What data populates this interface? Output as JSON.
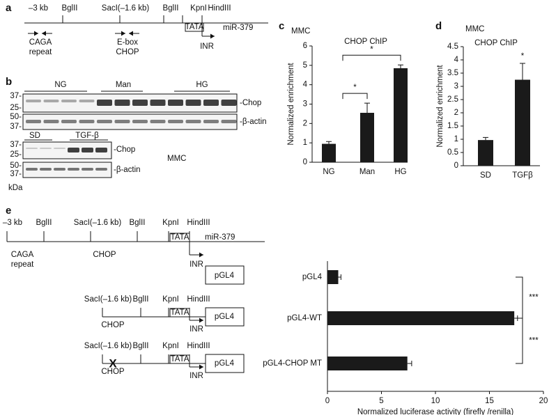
{
  "figure": {
    "panel_labels": [
      "a",
      "b",
      "c",
      "d",
      "e"
    ],
    "map_a": {
      "sites": [
        "–3 kb",
        "BglII",
        "SacI(–1.6 kb)",
        "BglII",
        "KpnI",
        "HindIII"
      ],
      "tata": "TATA",
      "mirna": "miR-379",
      "caga": [
        "CAGA",
        "repeat"
      ],
      "ebox": [
        "E-box",
        "CHOP"
      ],
      "inr": "INR"
    },
    "blot_b": {
      "groups": [
        "NG",
        "Man",
        "HG"
      ],
      "markers": [
        "37-",
        "25-",
        "50-",
        "37-"
      ],
      "bands": [
        "-Chop",
        "-β-actin"
      ],
      "groups2": [
        "SD",
        "TGF-β"
      ],
      "markers2": [
        "37-",
        "25-",
        "50-",
        "37-"
      ],
      "bands2": [
        "-Chop",
        "-β-actin"
      ],
      "cell": "MMC",
      "unit": "kDa"
    },
    "map_e": {
      "sites": [
        "–3 kb",
        "BglII",
        "SacI(–1.6 kb)",
        "BglII",
        "KpnI",
        "HindIII"
      ],
      "tata": "TATA",
      "mirna": "miR-379",
      "inr": "INR",
      "caga": [
        "CAGA",
        "repeat"
      ],
      "chop": "CHOP",
      "reporter": "pGL4",
      "constructs": [
        {
          "sites": [
            "SacI(–1.6 kb)",
            "BglII",
            "KpnI",
            "HindIII"
          ],
          "tata": "TATA",
          "chop": "CHOP",
          "inr": "INR",
          "reporter": "pGL4"
        },
        {
          "sites": [
            "SacI(–1.6 kb)",
            "BglII",
            "KpnI",
            "HindIII"
          ],
          "tata": "TATA",
          "chop": "CHOP",
          "inr": "INR",
          "reporter": "pGL4",
          "mutation": "X"
        }
      ]
    }
  },
  "chart_data": [
    {
      "type": "bar",
      "title": "CHOP ChIP",
      "subtitle": "MMC",
      "y_label": "Normalized enrichment",
      "categories": [
        "NG",
        "Man",
        "HG"
      ],
      "values": [
        0.95,
        2.55,
        4.85
      ],
      "errors": [
        0.12,
        0.5,
        0.17
      ],
      "color": "#1a1a1a",
      "ylim": [
        0,
        6
      ],
      "yticks": [
        0,
        1,
        2,
        3,
        4,
        5,
        6
      ],
      "annotations": [
        {
          "from": 0,
          "to": 1,
          "label": "*"
        },
        {
          "from": 0,
          "to": 2,
          "label": "*"
        }
      ]
    },
    {
      "type": "bar",
      "title": "CHOP ChIP",
      "subtitle": "MMC",
      "y_label": "Normalized enrichment",
      "categories": [
        "SD",
        "TGFβ"
      ],
      "values": [
        0.97,
        3.25
      ],
      "errors": [
        0.1,
        0.62
      ],
      "color": "#1a1a1a",
      "ylim": [
        0,
        4.5
      ],
      "yticks": [
        0,
        0.5,
        1,
        1.5,
        2,
        2.5,
        3,
        3.5,
        4,
        4.5
      ],
      "annotations": [
        {
          "from": 1,
          "to": 1,
          "label": "*"
        }
      ]
    },
    {
      "type": "hbar",
      "x_label": "Normalized luciferase activity (firefly /renilla)",
      "categories": [
        "pGL4",
        "pGL4-WT",
        "pGL4-CHOP MT"
      ],
      "values": [
        1,
        17.3,
        7.4
      ],
      "errors": [
        0.25,
        0.3,
        0.4
      ],
      "color": "#1a1a1a",
      "xlim": [
        0,
        20
      ],
      "xticks": [
        0,
        5,
        10,
        15,
        20
      ],
      "annotations": [
        {
          "from": 0,
          "to": 1,
          "label": "***"
        },
        {
          "from": 1,
          "to": 2,
          "label": "***"
        }
      ]
    }
  ]
}
